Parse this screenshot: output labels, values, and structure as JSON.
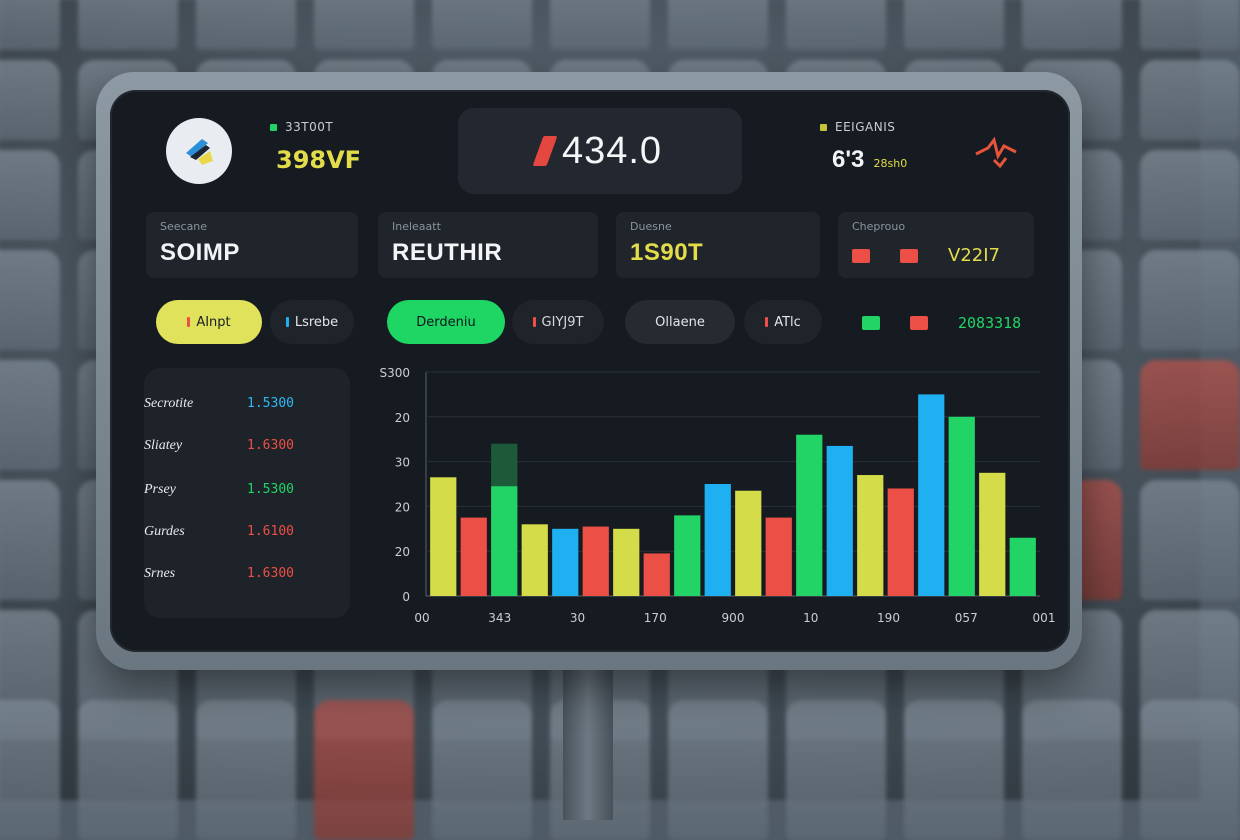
{
  "colors": {
    "yellow": "#d4dc4a",
    "red": "#ec4f45",
    "green": "#21d465",
    "blue": "#1eb0f0",
    "darkgreen": "#1c5a3a",
    "screen": "#161a21"
  },
  "header": {
    "logo_icon": "brand-logo-icon",
    "left_label": "33T00T",
    "left_value": "398VF",
    "score": "434.0",
    "right_label": "EEIGANIS",
    "right_value": "6'3",
    "right_sub": "28sh0",
    "right_icon": "spark-icon"
  },
  "cards": [
    {
      "label": "Seecane",
      "value": "SOIMP"
    },
    {
      "label": "Ineleaatt",
      "value": "REUTHIR"
    },
    {
      "label": "Duesne",
      "value": "1S90T"
    },
    {
      "label": "Cheprouo",
      "value": "V22I7"
    }
  ],
  "pills": [
    {
      "label": "AInpt"
    },
    {
      "label": "Lsrebe"
    },
    {
      "label": "Derdeniu"
    },
    {
      "label": "GIYJ9T"
    },
    {
      "label": "Ollaene"
    },
    {
      "label": "ATlc"
    },
    {
      "label": "2083318"
    }
  ],
  "list": [
    {
      "name": "Secrotite",
      "value": "1.5300",
      "color": "#2fb8f5"
    },
    {
      "name": "Sliatey",
      "value": "1.6300",
      "color": "#ec4f45"
    },
    {
      "name": "Prsey",
      "value": "1.5300",
      "color": "#21d465"
    },
    {
      "name": "Gurdes",
      "value": "1.6100",
      "color": "#ec4f45"
    },
    {
      "name": "Srnes",
      "value": "1.6300",
      "color": "#ec4f45"
    }
  ],
  "chart_data": {
    "type": "bar",
    "y_ticks": [
      "S300",
      "20",
      "30",
      "20",
      "20",
      "0"
    ],
    "x_ticks": [
      "00",
      "343",
      "30",
      "170",
      "900",
      "10",
      "190",
      "057",
      "001"
    ],
    "ylim": [
      0,
      100
    ],
    "grid": true,
    "bars": [
      {
        "value": 53,
        "color": "yellow"
      },
      {
        "value": 35,
        "color": "red"
      },
      {
        "value": 49,
        "color": "green",
        "top_value": 68
      },
      {
        "value": 32,
        "color": "yellow"
      },
      {
        "value": 30,
        "color": "blue"
      },
      {
        "value": 31,
        "color": "red"
      },
      {
        "value": 30,
        "color": "yellow"
      },
      {
        "value": 19,
        "color": "red"
      },
      {
        "value": 36,
        "color": "green"
      },
      {
        "value": 50,
        "color": "blue"
      },
      {
        "value": 47,
        "color": "yellow"
      },
      {
        "value": 35,
        "color": "red"
      },
      {
        "value": 72,
        "color": "green"
      },
      {
        "value": 67,
        "color": "blue"
      },
      {
        "value": 54,
        "color": "yellow"
      },
      {
        "value": 48,
        "color": "red"
      },
      {
        "value": 90,
        "color": "blue"
      },
      {
        "value": 80,
        "color": "green"
      },
      {
        "value": 55,
        "color": "yellow"
      },
      {
        "value": 26,
        "color": "green"
      }
    ]
  }
}
